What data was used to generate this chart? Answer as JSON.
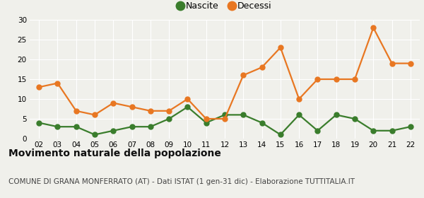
{
  "years": [
    "02",
    "03",
    "04",
    "05",
    "06",
    "07",
    "08",
    "09",
    "10",
    "11",
    "12",
    "13",
    "14",
    "15",
    "16",
    "17",
    "18",
    "19",
    "20",
    "21",
    "22"
  ],
  "nascite": [
    4,
    3,
    3,
    1,
    2,
    3,
    3,
    5,
    8,
    4,
    6,
    6,
    4,
    1,
    6,
    2,
    6,
    5,
    2,
    2,
    3
  ],
  "decessi": [
    13,
    14,
    7,
    6,
    9,
    8,
    7,
    7,
    10,
    5,
    5,
    16,
    18,
    23,
    10,
    15,
    15,
    15,
    28,
    19,
    19
  ],
  "nascite_color": "#3a7d2c",
  "decessi_color": "#e87722",
  "background_color": "#f0f0eb",
  "ylim": [
    0,
    30
  ],
  "yticks": [
    0,
    5,
    10,
    15,
    20,
    25,
    30
  ],
  "title": "Movimento naturale della popolazione",
  "subtitle": "COMUNE DI GRANA MONFERRATO (AT) - Dati ISTAT (1 gen-31 dic) - Elaborazione TUTTITALIA.IT",
  "legend_nascite": "Nascite",
  "legend_decessi": "Decessi",
  "title_fontsize": 10,
  "subtitle_fontsize": 7.5,
  "marker_size": 5,
  "line_width": 1.6
}
